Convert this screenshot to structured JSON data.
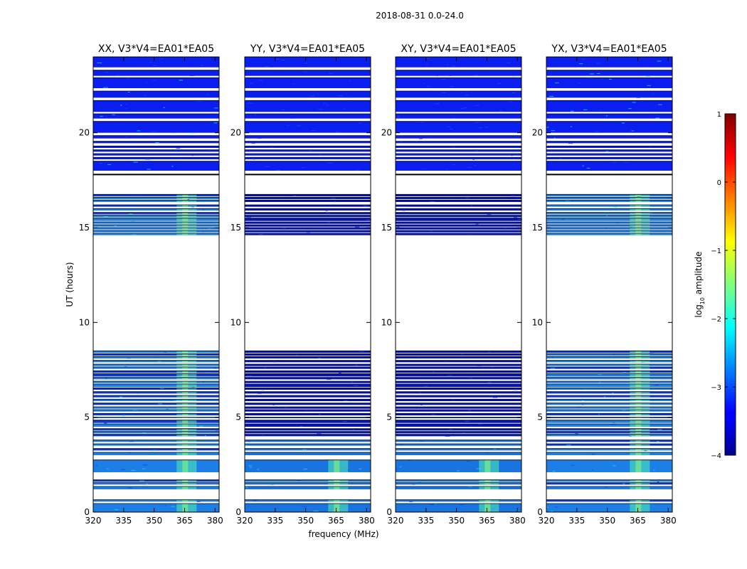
{
  "chart_data": {
    "type": "heatmap",
    "suptitle": "2018-08-31 0.0-24.0",
    "xlabel": "frequency (MHz)",
    "ylabel": "UT (hours)",
    "xlim": [
      320,
      382
    ],
    "ylim": [
      0,
      24
    ],
    "xticks": [
      320,
      335,
      350,
      365,
      380
    ],
    "yticks": [
      0,
      5,
      10,
      15,
      20
    ],
    "panels": [
      {
        "title": "XX, V3*V4=EA01*EA05",
        "pol": "XX",
        "strong": true
      },
      {
        "title": "YY, V3*V4=EA01*EA05",
        "pol": "YY",
        "strong": false
      },
      {
        "title": "XY, V3*V4=EA01*EA05",
        "pol": "XY",
        "strong": false
      },
      {
        "title": "YX, V3*V4=EA01*EA05",
        "pol": "YX",
        "strong": true
      }
    ],
    "rfi_center_mhz": 366,
    "data_segments_ut": [
      [
        0.0,
        0.45
      ],
      [
        0.55,
        0.65
      ],
      [
        1.2,
        1.35
      ],
      [
        1.45,
        1.55
      ],
      [
        1.6,
        1.7
      ],
      [
        2.1,
        2.75
      ],
      [
        3.0,
        3.15
      ],
      [
        3.25,
        3.35
      ],
      [
        3.5,
        3.6
      ],
      [
        3.7,
        3.8
      ],
      [
        4.0,
        4.1
      ],
      [
        4.15,
        4.25
      ],
      [
        4.3,
        4.4
      ],
      [
        4.5,
        4.65
      ],
      [
        4.7,
        4.85
      ],
      [
        4.95,
        5.0
      ],
      [
        5.1,
        5.2
      ],
      [
        5.3,
        5.4
      ],
      [
        5.45,
        5.55
      ],
      [
        5.65,
        5.75
      ],
      [
        5.85,
        5.95
      ],
      [
        6.05,
        6.15
      ],
      [
        6.25,
        6.35
      ],
      [
        6.45,
        6.55
      ],
      [
        6.6,
        6.75
      ],
      [
        6.8,
        6.9
      ],
      [
        7.0,
        7.1
      ],
      [
        7.15,
        7.3
      ],
      [
        7.35,
        7.45
      ],
      [
        7.55,
        7.65
      ],
      [
        7.7,
        7.8
      ],
      [
        7.9,
        8.0
      ],
      [
        8.1,
        8.2
      ],
      [
        8.25,
        8.35
      ],
      [
        8.4,
        8.5
      ],
      [
        14.6,
        14.7
      ],
      [
        14.75,
        14.85
      ],
      [
        14.9,
        15.0
      ],
      [
        15.05,
        15.15
      ],
      [
        15.2,
        15.3
      ],
      [
        15.35,
        15.5
      ],
      [
        15.55,
        15.65
      ],
      [
        15.7,
        15.8
      ],
      [
        15.9,
        16.0
      ],
      [
        16.1,
        16.2
      ],
      [
        16.35,
        16.45
      ],
      [
        16.5,
        16.6
      ],
      [
        16.65,
        16.75
      ],
      [
        18.0,
        18.5
      ],
      [
        18.6,
        18.7
      ],
      [
        18.8,
        18.9
      ],
      [
        19.0,
        19.1
      ],
      [
        19.2,
        19.3
      ],
      [
        19.45,
        19.55
      ],
      [
        19.7,
        19.85
      ],
      [
        20.0,
        20.6
      ],
      [
        20.75,
        21.0
      ],
      [
        21.1,
        21.7
      ],
      [
        21.85,
        22.2
      ],
      [
        22.35,
        22.9
      ],
      [
        23.0,
        23.3
      ],
      [
        23.45,
        24.0
      ]
    ],
    "colorbar": {
      "label": "log",
      "label_sub": "10",
      "label_rest": " amplitude",
      "vmin": -4,
      "vmax": 1,
      "ticks": [
        -4,
        -3,
        -2,
        -1,
        0,
        1
      ],
      "colormap": "jet"
    }
  }
}
